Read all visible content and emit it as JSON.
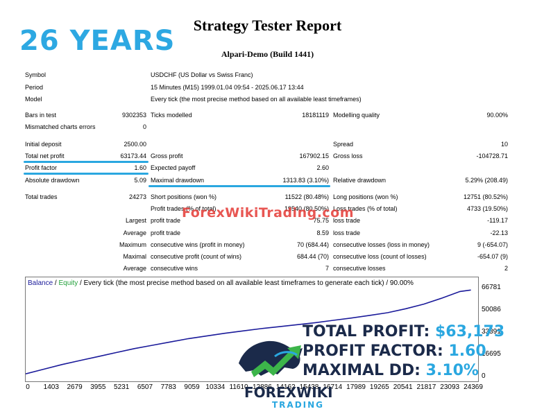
{
  "badge": {
    "years": "26 YEARS"
  },
  "report": {
    "title": "Strategy Tester Report",
    "subtitle": "Alpari-Demo (Build 1441)"
  },
  "header": [
    {
      "label": "Symbol",
      "value": "USDCHF (US Dollar vs Swiss Franc)"
    },
    {
      "label": "Period",
      "value": "15 Minutes (M15) 1999.01.04 09:54 - 2025.06.17 13:44"
    },
    {
      "label": "Model",
      "value": "Every tick (the most precise method based on all available least timeframes)"
    }
  ],
  "stats": {
    "bars_label": "Bars in test",
    "bars_value": "9302353",
    "ticks_label": "Ticks modelled",
    "ticks_value": "18181119",
    "quality_label": "Modelling quality",
    "quality_value": "90.00%",
    "mismatch_label": "Mismatched charts errors",
    "mismatch_value": "0",
    "deposit_label": "Initial deposit",
    "deposit_value": "2500.00",
    "spread_label": "Spread",
    "spread_value": "10",
    "netprofit_label": "Total net profit",
    "netprofit_value": "63173.44",
    "grossprofit_label": "Gross profit",
    "grossprofit_value": "167902.15",
    "grossloss_label": "Gross loss",
    "grossloss_value": "-104728.71",
    "pf_label": "Profit factor",
    "pf_value": "1.60",
    "payoff_label": "Expected payoff",
    "payoff_value": "2.60",
    "absdd_label": "Absolute drawdown",
    "absdd_value": "5.09",
    "maxdd_label": "Maximal drawdown",
    "maxdd_value": "1313.83 (3.10%)",
    "reldd_label": "Relative drawdown",
    "reldd_value": "5.29% (208.49)",
    "trades_label": "Total trades",
    "trades_value": "24273",
    "short_label": "Short positions (won %)",
    "short_value": "11522 (80.48%)",
    "long_label": "Long positions (won %)",
    "long_value": "12751 (80.52%)",
    "ptrades_label": "Profit trades (% of total)",
    "ptrades_value": "19540 (80.50%)",
    "ltrades_label": "Loss trades (% of total)",
    "ltrades_value": "4733 (19.50%)",
    "largest_label": "Largest",
    "lp_label": "profit trade",
    "lp_value": "75.75",
    "ll_label": "loss trade",
    "ll_value": "-119.17",
    "average_label": "Average",
    "ap_label": "profit trade",
    "ap_value": "8.59",
    "al_label": "loss trade",
    "al_value": "-22.13",
    "maximum_label": "Maximum",
    "mcw_label": "consecutive wins (profit in money)",
    "mcw_value": "70 (684.44)",
    "mcl_label": "consecutive losses (loss in money)",
    "mcl_value": "9 (-654.07)",
    "maximal_label": "Maximal",
    "mcp_label": "consecutive profit (count of wins)",
    "mcp_value": "684.44 (70)",
    "mclc_label": "consecutive loss (count of losses)",
    "mclc_value": "-654.07 (9)",
    "average2_label": "Average",
    "acw_label": "consecutive wins",
    "acw_value": "7",
    "acl_label": "consecutive losses",
    "acl_value": "2"
  },
  "watermark": "ForexWikiTrading.com",
  "chart_data": {
    "type": "line",
    "legend_balance": "Balance",
    "legend_sep": " / ",
    "legend_equity": "Equity",
    "legend_rest": " / Every tick (the most precise method based on all available least timeframes to generate each tick) / 90.00%",
    "y_ticks": [
      "66781",
      "50086",
      "33391",
      "16695",
      "0"
    ],
    "x_ticks": [
      "0",
      "1403",
      "2679",
      "3955",
      "5231",
      "6507",
      "7783",
      "9059",
      "10334",
      "11610",
      "12886",
      "14162",
      "15438",
      "16714",
      "17989",
      "19265",
      "20541",
      "21817",
      "23093",
      "24369"
    ],
    "ylim": [
      0,
      66781
    ],
    "xlim": [
      0,
      25000
    ],
    "series": [
      {
        "name": "Balance",
        "color": "#1a1a9a",
        "x": [
          0,
          1000,
          2000,
          3000,
          4000,
          5000,
          6000,
          7000,
          8000,
          9000,
          10000,
          11000,
          12000,
          13000,
          14000,
          15000,
          16000,
          17000,
          18000,
          19000,
          20000,
          21000,
          22000,
          23000,
          24000,
          24600
        ],
        "y": [
          2500,
          6000,
          9500,
          12500,
          15500,
          18500,
          21500,
          24000,
          26500,
          29000,
          31000,
          33000,
          34800,
          36500,
          38000,
          39500,
          41000,
          42800,
          44500,
          46500,
          48500,
          51500,
          55000,
          59500,
          64500,
          65600
        ]
      }
    ]
  },
  "overlay": {
    "profit_label": "TOTAL PROFIT:",
    "profit_value": "$63,173",
    "pf_label": "PROFIT FACTOR:",
    "pf_value": "1.60",
    "dd_label": "MAXIMAL DD:",
    "dd_value": "3.10%"
  },
  "logo": {
    "line1": "FOREXWIKI",
    "line2": "TRADING",
    "colors": {
      "navy": "#1b2a4a",
      "blue": "#2aa7e0",
      "green": "#3cb54a"
    }
  }
}
